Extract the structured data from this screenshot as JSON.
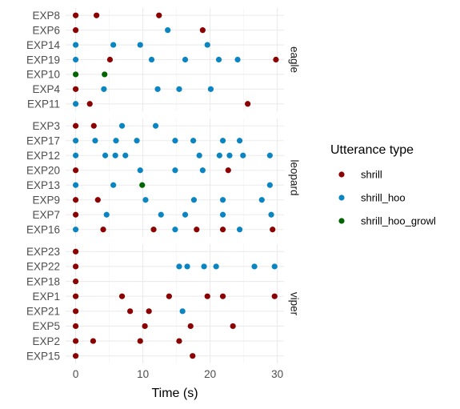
{
  "chart_data": {
    "type": "scatter",
    "xlabel": "Time (s)",
    "xlim": [
      -1.5,
      31
    ],
    "x_ticks": [
      0,
      10,
      20,
      30
    ],
    "grid": true,
    "legend": {
      "title": "Utterance type",
      "position": "right",
      "entries": [
        "shrill",
        "shrill_hoo",
        "shrill_hoo_growl"
      ]
    },
    "colors": {
      "shrill": "#8B0000",
      "shrill_hoo": "#0A85C2",
      "shrill_hoo_growl": "#006400"
    },
    "panels": [
      {
        "name": "eagle",
        "experiments": [
          "EXP8",
          "EXP6",
          "EXP14",
          "EXP19",
          "EXP10",
          "EXP4",
          "EXP11"
        ],
        "points": [
          {
            "exp": "EXP8",
            "x": 0,
            "type": "shrill"
          },
          {
            "exp": "EXP8",
            "x": 3.1,
            "type": "shrill"
          },
          {
            "exp": "EXP8",
            "x": 12.4,
            "type": "shrill"
          },
          {
            "exp": "EXP6",
            "x": 0,
            "type": "shrill"
          },
          {
            "exp": "EXP6",
            "x": 13.7,
            "type": "shrill_hoo"
          },
          {
            "exp": "EXP6",
            "x": 18.9,
            "type": "shrill"
          },
          {
            "exp": "EXP14",
            "x": 0,
            "type": "shrill_hoo"
          },
          {
            "exp": "EXP14",
            "x": 5.6,
            "type": "shrill_hoo"
          },
          {
            "exp": "EXP14",
            "x": 9.6,
            "type": "shrill_hoo"
          },
          {
            "exp": "EXP14",
            "x": 19.6,
            "type": "shrill_hoo"
          },
          {
            "exp": "EXP19",
            "x": 0,
            "type": "shrill_hoo"
          },
          {
            "exp": "EXP19",
            "x": 5.1,
            "type": "shrill"
          },
          {
            "exp": "EXP19",
            "x": 11.3,
            "type": "shrill_hoo"
          },
          {
            "exp": "EXP19",
            "x": 16.3,
            "type": "shrill_hoo"
          },
          {
            "exp": "EXP19",
            "x": 21.3,
            "type": "shrill_hoo"
          },
          {
            "exp": "EXP19",
            "x": 24.1,
            "type": "shrill_hoo"
          },
          {
            "exp": "EXP19",
            "x": 29.8,
            "type": "shrill"
          },
          {
            "exp": "EXP10",
            "x": 0,
            "type": "shrill_hoo_growl"
          },
          {
            "exp": "EXP10",
            "x": 4.3,
            "type": "shrill_hoo_growl"
          },
          {
            "exp": "EXP4",
            "x": 0,
            "type": "shrill"
          },
          {
            "exp": "EXP4",
            "x": 4.2,
            "type": "shrill_hoo"
          },
          {
            "exp": "EXP4",
            "x": 12.2,
            "type": "shrill_hoo"
          },
          {
            "exp": "EXP4",
            "x": 15.4,
            "type": "shrill_hoo"
          },
          {
            "exp": "EXP4",
            "x": 20.1,
            "type": "shrill_hoo"
          },
          {
            "exp": "EXP11",
            "x": 0,
            "type": "shrill_hoo"
          },
          {
            "exp": "EXP11",
            "x": 2.1,
            "type": "shrill"
          },
          {
            "exp": "EXP11",
            "x": 25.6,
            "type": "shrill"
          }
        ]
      },
      {
        "name": "leopard",
        "experiments": [
          "EXP3",
          "EXP17",
          "EXP12",
          "EXP20",
          "EXP13",
          "EXP9",
          "EXP7",
          "EXP16"
        ],
        "points": [
          {
            "exp": "EXP3",
            "x": 0,
            "type": "shrill"
          },
          {
            "exp": "EXP3",
            "x": 2.7,
            "type": "shrill"
          },
          {
            "exp": "EXP3",
            "x": 6.9,
            "type": "shrill_hoo"
          },
          {
            "exp": "EXP3",
            "x": 11.9,
            "type": "shrill_hoo"
          },
          {
            "exp": "EXP17",
            "x": 0,
            "type": "shrill_hoo"
          },
          {
            "exp": "EXP17",
            "x": 2.9,
            "type": "shrill_hoo"
          },
          {
            "exp": "EXP17",
            "x": 6.0,
            "type": "shrill_hoo"
          },
          {
            "exp": "EXP17",
            "x": 9.1,
            "type": "shrill_hoo"
          },
          {
            "exp": "EXP17",
            "x": 14.8,
            "type": "shrill_hoo"
          },
          {
            "exp": "EXP17",
            "x": 17.5,
            "type": "shrill_hoo"
          },
          {
            "exp": "EXP17",
            "x": 21.9,
            "type": "shrill_hoo"
          },
          {
            "exp": "EXP17",
            "x": 24.4,
            "type": "shrill_hoo"
          },
          {
            "exp": "EXP12",
            "x": 0,
            "type": "shrill_hoo"
          },
          {
            "exp": "EXP12",
            "x": 4.4,
            "type": "shrill_hoo"
          },
          {
            "exp": "EXP12",
            "x": 5.9,
            "type": "shrill_hoo"
          },
          {
            "exp": "EXP12",
            "x": 7.4,
            "type": "shrill_hoo"
          },
          {
            "exp": "EXP12",
            "x": 18.4,
            "type": "shrill_hoo"
          },
          {
            "exp": "EXP12",
            "x": 21.4,
            "type": "shrill_hoo"
          },
          {
            "exp": "EXP12",
            "x": 22.9,
            "type": "shrill_hoo"
          },
          {
            "exp": "EXP12",
            "x": 24.9,
            "type": "shrill_hoo"
          },
          {
            "exp": "EXP12",
            "x": 28.9,
            "type": "shrill_hoo"
          },
          {
            "exp": "EXP20",
            "x": 0,
            "type": "shrill"
          },
          {
            "exp": "EXP20",
            "x": 9.6,
            "type": "shrill_hoo"
          },
          {
            "exp": "EXP20",
            "x": 14.8,
            "type": "shrill_hoo"
          },
          {
            "exp": "EXP20",
            "x": 18.9,
            "type": "shrill_hoo"
          },
          {
            "exp": "EXP20",
            "x": 22.7,
            "type": "shrill"
          },
          {
            "exp": "EXP13",
            "x": 0,
            "type": "shrill_hoo"
          },
          {
            "exp": "EXP13",
            "x": 5.6,
            "type": "shrill_hoo"
          },
          {
            "exp": "EXP13",
            "x": 9.9,
            "type": "shrill_hoo_growl"
          },
          {
            "exp": "EXP13",
            "x": 28.9,
            "type": "shrill_hoo"
          },
          {
            "exp": "EXP9",
            "x": 0,
            "type": "shrill"
          },
          {
            "exp": "EXP9",
            "x": 3.3,
            "type": "shrill"
          },
          {
            "exp": "EXP9",
            "x": 10.4,
            "type": "shrill_hoo"
          },
          {
            "exp": "EXP9",
            "x": 17.6,
            "type": "shrill_hoo"
          },
          {
            "exp": "EXP9",
            "x": 21.9,
            "type": "shrill_hoo"
          },
          {
            "exp": "EXP9",
            "x": 27.7,
            "type": "shrill_hoo"
          },
          {
            "exp": "EXP7",
            "x": 0,
            "type": "shrill"
          },
          {
            "exp": "EXP7",
            "x": 4.6,
            "type": "shrill_hoo"
          },
          {
            "exp": "EXP7",
            "x": 12.7,
            "type": "shrill_hoo"
          },
          {
            "exp": "EXP7",
            "x": 16.3,
            "type": "shrill_hoo"
          },
          {
            "exp": "EXP7",
            "x": 21.9,
            "type": "shrill_hoo"
          },
          {
            "exp": "EXP7",
            "x": 29.1,
            "type": "shrill_hoo"
          },
          {
            "exp": "EXP16",
            "x": 0,
            "type": "shrill_hoo"
          },
          {
            "exp": "EXP16",
            "x": 4.1,
            "type": "shrill"
          },
          {
            "exp": "EXP16",
            "x": 11.6,
            "type": "shrill"
          },
          {
            "exp": "EXP16",
            "x": 14.8,
            "type": "shrill_hoo"
          },
          {
            "exp": "EXP16",
            "x": 18.0,
            "type": "shrill"
          },
          {
            "exp": "EXP16",
            "x": 21.9,
            "type": "shrill"
          },
          {
            "exp": "EXP16",
            "x": 24.4,
            "type": "shrill_hoo"
          },
          {
            "exp": "EXP16",
            "x": 29.3,
            "type": "shrill"
          }
        ]
      },
      {
        "name": "viper",
        "experiments": [
          "EXP23",
          "EXP22",
          "EXP18",
          "EXP1",
          "EXP21",
          "EXP5",
          "EXP2",
          "EXP15"
        ],
        "points": [
          {
            "exp": "EXP23",
            "x": 0,
            "type": "shrill"
          },
          {
            "exp": "EXP22",
            "x": 0,
            "type": "shrill"
          },
          {
            "exp": "EXP22",
            "x": 15.4,
            "type": "shrill_hoo"
          },
          {
            "exp": "EXP22",
            "x": 16.6,
            "type": "shrill_hoo"
          },
          {
            "exp": "EXP22",
            "x": 19.1,
            "type": "shrill_hoo"
          },
          {
            "exp": "EXP22",
            "x": 20.9,
            "type": "shrill_hoo"
          },
          {
            "exp": "EXP22",
            "x": 26.6,
            "type": "shrill_hoo"
          },
          {
            "exp": "EXP22",
            "x": 29.6,
            "type": "shrill_hoo"
          },
          {
            "exp": "EXP18",
            "x": 0,
            "type": "shrill"
          },
          {
            "exp": "EXP1",
            "x": 0,
            "type": "shrill"
          },
          {
            "exp": "EXP1",
            "x": 6.9,
            "type": "shrill"
          },
          {
            "exp": "EXP1",
            "x": 13.9,
            "type": "shrill"
          },
          {
            "exp": "EXP1",
            "x": 19.6,
            "type": "shrill"
          },
          {
            "exp": "EXP1",
            "x": 21.9,
            "type": "shrill"
          },
          {
            "exp": "EXP1",
            "x": 29.6,
            "type": "shrill"
          },
          {
            "exp": "EXP21",
            "x": 0,
            "type": "shrill"
          },
          {
            "exp": "EXP21",
            "x": 8.1,
            "type": "shrill"
          },
          {
            "exp": "EXP21",
            "x": 10.9,
            "type": "shrill"
          },
          {
            "exp": "EXP21",
            "x": 15.9,
            "type": "shrill_hoo"
          },
          {
            "exp": "EXP5",
            "x": 0,
            "type": "shrill"
          },
          {
            "exp": "EXP5",
            "x": 10.3,
            "type": "shrill"
          },
          {
            "exp": "EXP5",
            "x": 17.1,
            "type": "shrill"
          },
          {
            "exp": "EXP5",
            "x": 23.4,
            "type": "shrill"
          },
          {
            "exp": "EXP2",
            "x": 0,
            "type": "shrill"
          },
          {
            "exp": "EXP2",
            "x": 2.6,
            "type": "shrill"
          },
          {
            "exp": "EXP2",
            "x": 9.6,
            "type": "shrill"
          },
          {
            "exp": "EXP2",
            "x": 15.4,
            "type": "shrill"
          },
          {
            "exp": "EXP15",
            "x": 0,
            "type": "shrill"
          },
          {
            "exp": "EXP15",
            "x": 17.4,
            "type": "shrill"
          }
        ]
      }
    ]
  }
}
